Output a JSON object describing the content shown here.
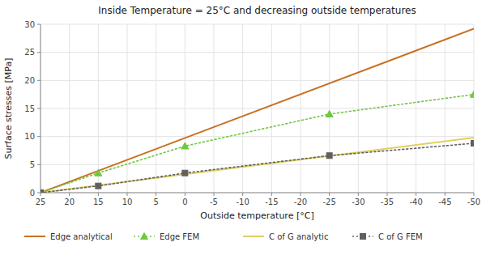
{
  "chart_data": {
    "type": "line",
    "title": "Inside Temperature = 25°C and decreasing outside temperatures",
    "x_label": "Outside temperature [°C]",
    "y_label": "Surface stresses [MPa]",
    "xlim": [
      25,
      -50
    ],
    "ylim": [
      0,
      30
    ],
    "xticks": [
      25,
      20,
      15,
      10,
      5,
      0,
      -5,
      -10,
      -15,
      -20,
      -25,
      -30,
      -35,
      -40,
      -45,
      -50
    ],
    "yticks": [
      0,
      5,
      10,
      15,
      20,
      25,
      30
    ],
    "grid": true,
    "legend": "bottom",
    "series": [
      {
        "name": "Edge analytical",
        "color": "#c87020",
        "line_style": "solid",
        "x": [
          25,
          -50
        ],
        "values": [
          0,
          29.2
        ]
      },
      {
        "name": "Edge FEM",
        "color": "#70c840",
        "line_style": "dotted",
        "marker": "triangle",
        "x": [
          25,
          15,
          0,
          -25,
          -50
        ],
        "values": [
          0,
          3.5,
          8.3,
          14.0,
          17.5
        ]
      },
      {
        "name": "C of G analytic",
        "color": "#e0d060",
        "line_style": "solid",
        "x": [
          25,
          -50
        ],
        "values": [
          0,
          9.8
        ]
      },
      {
        "name": "C of G FEM",
        "color": "#606060",
        "line_style": "dotted",
        "marker": "square",
        "x": [
          25,
          15,
          0,
          -25,
          -50
        ],
        "values": [
          0,
          1.2,
          3.5,
          6.6,
          8.8
        ]
      }
    ]
  }
}
